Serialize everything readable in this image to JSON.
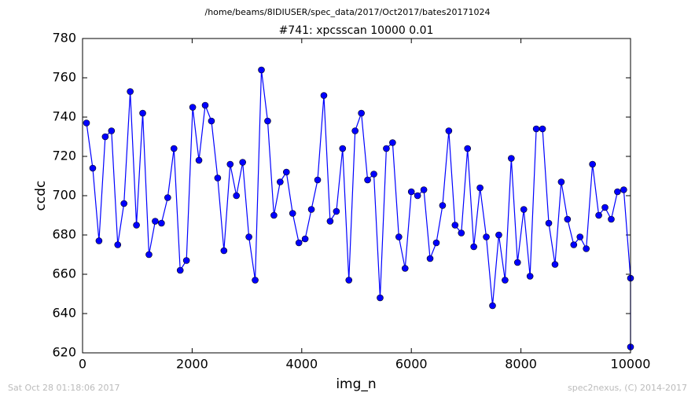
{
  "chart_data": {
    "type": "line",
    "suptitle": "/home/beams/8IDIUSER/spec_data/2017/Oct2017/bates20171024",
    "title": "#741: xpcsscan 10000 0.01",
    "xlabel": "img_n",
    "ylabel": "ccdc",
    "footer_left": "Sat Oct 28 01:18:06 2017",
    "footer_right": "spec2nexus, (C) 2014-2017",
    "x": [
      72,
      186,
      300,
      414,
      528,
      642,
      756,
      870,
      984,
      1098,
      1212,
      1326,
      1440,
      1554,
      1668,
      1782,
      1896,
      2010,
      2124,
      2238,
      2352,
      2466,
      2580,
      2694,
      2808,
      2922,
      3036,
      3150,
      3264,
      3378,
      3492,
      3606,
      3720,
      3834,
      3948,
      4062,
      4176,
      4290,
      4404,
      4518,
      4632,
      4746,
      4860,
      4974,
      5088,
      5202,
      5316,
      5430,
      5544,
      5658,
      5772,
      5886,
      6000,
      6114,
      6228,
      6342,
      6456,
      6570,
      6684,
      6798,
      6912,
      7026,
      7140,
      7254,
      7368,
      7482,
      7596,
      7710,
      7824,
      7938,
      8052,
      8166,
      8280,
      8394,
      8508,
      8622,
      8736,
      8850,
      8964,
      9078,
      9192,
      9306,
      9420,
      9534,
      9648,
      9762,
      9876,
      10000,
      10000
    ],
    "series": [
      {
        "name": "ccdc",
        "color": "#0000ff",
        "values": [
          737,
          714,
          677,
          730,
          733,
          675,
          696,
          753,
          685,
          742,
          670,
          687,
          686,
          699,
          724,
          662,
          667,
          745,
          718,
          746,
          738,
          709,
          672,
          716,
          700,
          717,
          679,
          657,
          764,
          738,
          690,
          707,
          712,
          691,
          676,
          678,
          693,
          708,
          751,
          687,
          692,
          724,
          657,
          733,
          742,
          708,
          711,
          648,
          724,
          727,
          679,
          663,
          702,
          700,
          703,
          668,
          676,
          695,
          733,
          685,
          681,
          724,
          674,
          704,
          679,
          644,
          680,
          657,
          719,
          666,
          693,
          659,
          734,
          734,
          686,
          665,
          707,
          688,
          675,
          679,
          673,
          716,
          690,
          694,
          688,
          702,
          703,
          658,
          623
        ]
      }
    ],
    "xlim": [
      0,
      10000
    ],
    "xticks": [
      0,
      2000,
      4000,
      6000,
      8000,
      10000
    ],
    "ylim": [
      620,
      780
    ],
    "yticks": [
      620,
      640,
      660,
      680,
      700,
      720,
      740,
      760,
      780
    ],
    "grid": false
  }
}
